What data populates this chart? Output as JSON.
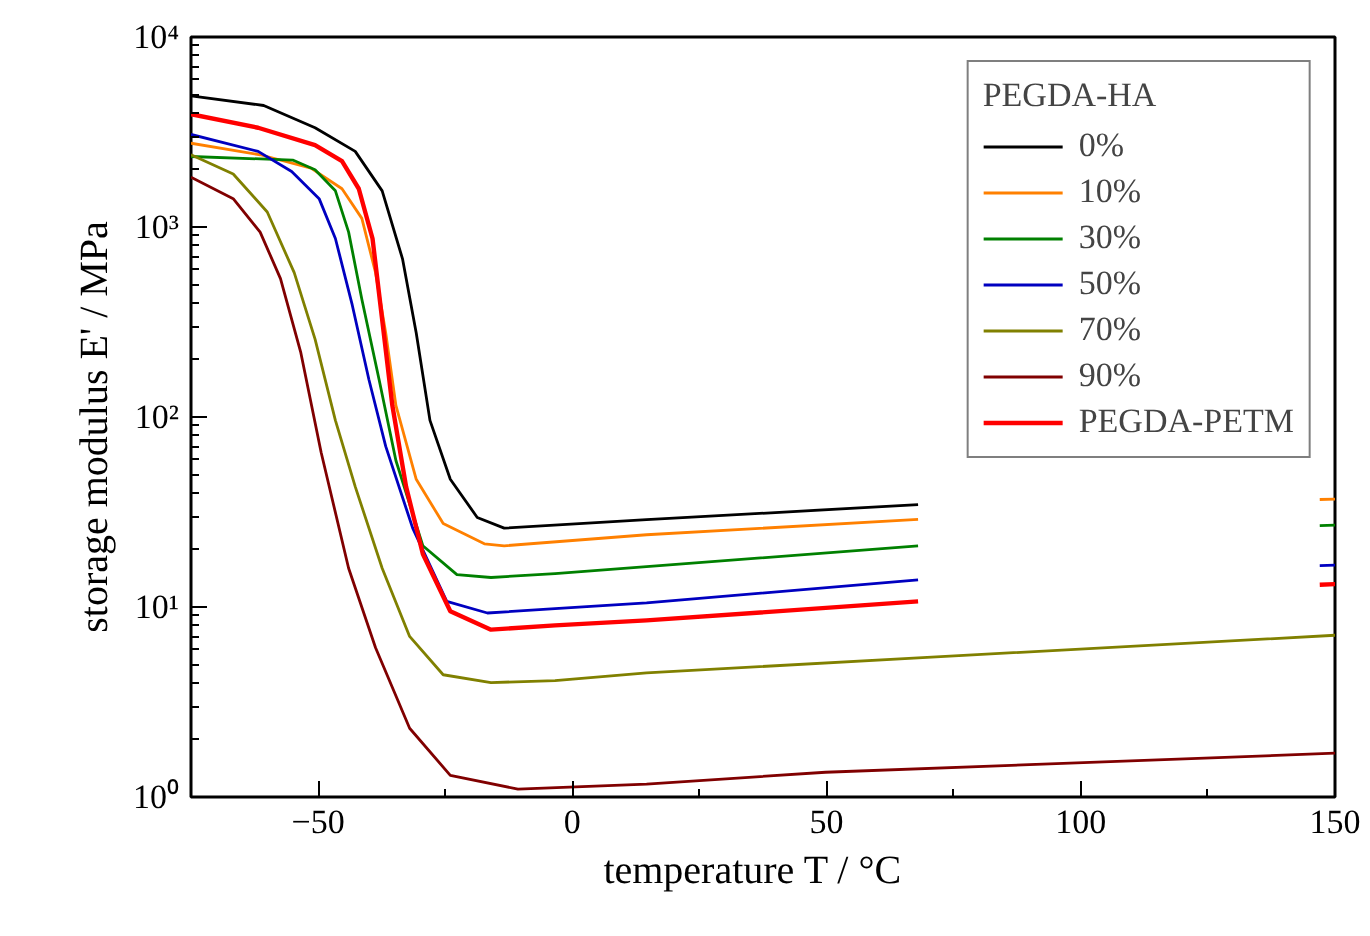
{
  "chart_data": {
    "type": "line",
    "xlabel": "temperature T  /  °C",
    "ylabel": "storage modulus E'  /  MPa",
    "legend_title": "PEGDA-HA",
    "log": "y",
    "grid": false,
    "legend": "top right",
    "line_style": "solid",
    "marker": "none",
    "xlim": [
      -75,
      150
    ],
    "xticks": [
      -50,
      0,
      50,
      100,
      150
    ],
    "ylim": [
      1,
      10000
    ],
    "yticks": [
      {
        "value": 1,
        "label": "10⁰"
      },
      {
        "value": 10,
        "label": "10¹"
      },
      {
        "value": 100,
        "label": "10²"
      },
      {
        "value": 1000,
        "label": "10³"
      },
      {
        "value": 10000,
        "label": "10⁴"
      }
    ],
    "series": [
      {
        "name": "0%",
        "color": "#000000",
        "x": [
          -75,
          -60.7,
          -50.6,
          -42.7,
          -37.4,
          -33.4,
          -30.7,
          -28,
          -24,
          -18.7,
          -13.4,
          14.6,
          68
        ],
        "values": [
          4900,
          4360,
          3330,
          2500,
          1550,
          680,
          277,
          96,
          47,
          29.6,
          26,
          28.8,
          34.6
        ]
      },
      {
        "name": "10%",
        "color": "#ff8000",
        "x": [
          -75,
          -61.4,
          -51.4,
          -45.3,
          -41.4,
          -38.7,
          -36.7,
          -34.7,
          -30.7,
          -25.4,
          -17.3,
          -13.4,
          14.6,
          68,
          100,
          147,
          150
        ],
        "values": [
          2760,
          2400,
          2040,
          1590,
          1110,
          575,
          277,
          115,
          47,
          27.5,
          21.5,
          21,
          24,
          28.9,
          null,
          36.8,
          37
        ]
      },
      {
        "name": "30%",
        "color": "#008000",
        "x": [
          -75,
          -55,
          -50.6,
          -46.6,
          -44,
          -41.4,
          -38,
          -34.7,
          -29.4,
          -22.7,
          -16,
          -3.4,
          14.6,
          68,
          100,
          147,
          150
        ],
        "values": [
          2350,
          2250,
          2000,
          1550,
          940,
          417,
          157,
          59,
          21,
          14.8,
          14.3,
          15,
          16.3,
          21,
          null,
          26.8,
          27
        ]
      },
      {
        "name": "50%",
        "color": "#0000c0",
        "x": [
          -75,
          -61.8,
          -55.2,
          -49.8,
          -46.6,
          -43.3,
          -40,
          -36.7,
          -31.4,
          -24.7,
          -16.7,
          -3.4,
          14.6,
          68,
          100,
          147,
          150
        ],
        "values": [
          3070,
          2500,
          1960,
          1410,
          870,
          390,
          157,
          70,
          26,
          10.7,
          9.3,
          9.8,
          10.5,
          13.9,
          null,
          16.5,
          16.6
        ]
      },
      {
        "name": "70%",
        "color": "#808000",
        "x": [
          -75,
          -66.7,
          -60,
          -54.7,
          -50.6,
          -46.6,
          -42.7,
          -37.4,
          -32,
          -25.4,
          -16,
          -3.4,
          14.6,
          68,
          150
        ],
        "values": [
          2400,
          1900,
          1200,
          575,
          257,
          96,
          43,
          16,
          7,
          4.4,
          4.0,
          4.1,
          4.5,
          5.4,
          7.1
        ]
      },
      {
        "name": "90%",
        "color": "#800000",
        "x": [
          -75,
          -66.7,
          -61.4,
          -57.4,
          -53.4,
          -49.4,
          -44,
          -38.7,
          -32,
          -24,
          -10.7,
          14.6,
          49.8,
          150
        ],
        "values": [
          1830,
          1410,
          940,
          535,
          218,
          65,
          16,
          6.1,
          2.3,
          1.3,
          1.1,
          1.17,
          1.35,
          1.7
        ]
      },
      {
        "name": "PEGDA-PETM",
        "color": "#ff0000",
        "x": [
          -75,
          -61.8,
          -50.6,
          -45.3,
          -42,
          -39.3,
          -37.4,
          -35.4,
          -32.7,
          -29.4,
          -24,
          -16,
          -3.4,
          14.6,
          68,
          100,
          147,
          150
        ],
        "values": [
          3920,
          3330,
          2700,
          2220,
          1590,
          870,
          325,
          115,
          43,
          19,
          9.5,
          7.6,
          8,
          8.5,
          10.7,
          null,
          13.1,
          13.2
        ]
      }
    ]
  }
}
